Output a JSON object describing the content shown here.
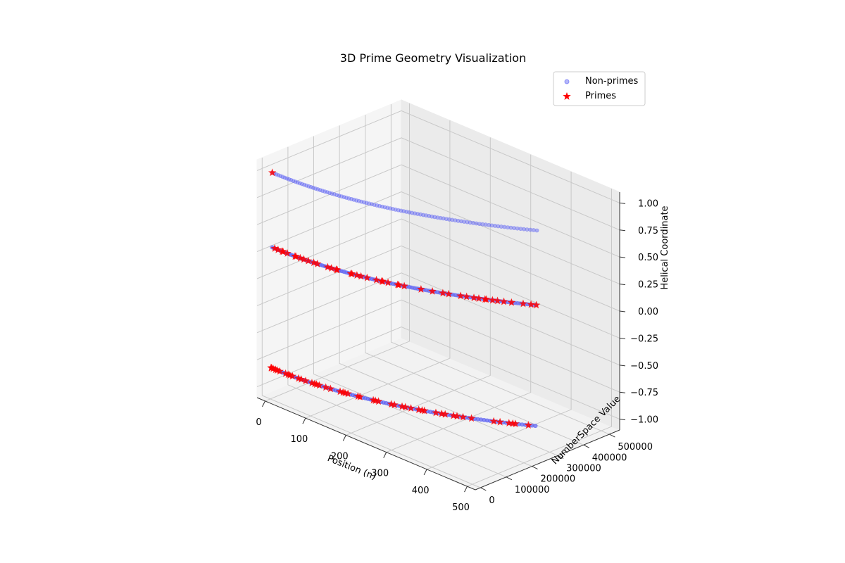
{
  "chart_data": {
    "type": "scatter",
    "projection": "3d",
    "title": "3D Prime Geometry Visualization",
    "xlabel": "Position (n)",
    "ylabel": "NumberSpace Value",
    "zlabel": "Helical Coordinate",
    "xlim": [
      -20,
      520
    ],
    "ylim": [
      -20000,
      540000
    ],
    "zlim": [
      -1.1,
      1.1
    ],
    "xticks": [
      0,
      100,
      200,
      300,
      400,
      500
    ],
    "yticks": [
      0,
      100000,
      200000,
      300000,
      400000,
      500000
    ],
    "zticks": [
      -1.0,
      -0.75,
      -0.5,
      -0.25,
      0.0,
      0.25,
      0.5,
      0.75,
      1.0
    ],
    "xtick_labels": [
      "0",
      "100",
      "200",
      "300",
      "400",
      "500"
    ],
    "ytick_labels": [
      "0",
      "100000",
      "200000",
      "300000",
      "400000",
      "500000"
    ],
    "ztick_labels": [
      "−1.00",
      "−0.75",
      "−0.50",
      "−0.25",
      "0.00",
      "0.25",
      "0.50",
      "0.75",
      "1.00"
    ],
    "grid": true,
    "legend_position": "top-right",
    "series": [
      {
        "name": "Non-primes",
        "marker": "circle",
        "color": "#5a5ff5",
        "alpha": 0.45,
        "description_rule": "n = 2..500, NumberSpace value = n^2 + n, helical coordinate = cos(2*pi*n/5)"
      },
      {
        "name": "Primes",
        "marker": "star",
        "color": "#ff0000",
        "alpha": 0.9,
        "values_n": [
          2,
          3,
          5,
          7,
          11,
          13,
          17,
          19,
          23,
          29,
          31,
          37,
          41,
          43,
          47,
          53,
          59,
          61,
          67,
          71,
          73,
          79,
          83,
          89,
          97,
          101,
          103,
          107,
          109,
          113,
          127,
          131,
          137,
          139,
          149,
          151,
          157,
          163,
          167,
          173,
          179,
          181,
          191,
          193,
          197,
          199,
          211,
          223,
          227,
          229,
          233,
          239,
          241,
          251,
          257,
          263,
          269,
          271,
          277,
          281,
          283,
          293,
          307,
          311,
          313,
          317,
          331,
          337,
          347,
          349,
          353,
          359,
          367,
          373,
          379,
          383,
          389,
          397,
          401,
          409,
          419,
          421,
          431,
          433,
          439,
          443,
          449,
          457,
          461,
          463,
          467,
          479,
          487,
          491,
          499
        ]
      }
    ]
  }
}
